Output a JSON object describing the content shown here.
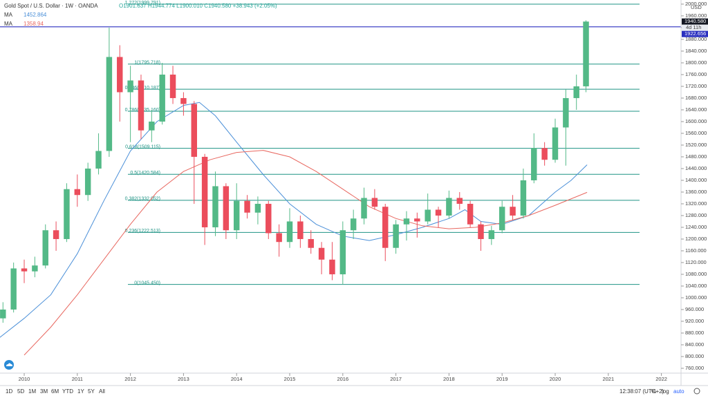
{
  "chart_data": {
    "type": "candlestick",
    "title": "Gold Spot / U.S. Dollar · 1W · OANDA",
    "ohlc_text": "O1901.637 H1944.774 L1900.010 C1940.580 +38.943 (+2.05%)",
    "y_unit": "USD",
    "up_color": "#53b987",
    "down_color": "#eb4d5c",
    "x": [
      2009.6,
      2009.8,
      2010.0,
      2010.2,
      2010.4,
      2010.6,
      2010.8,
      2011.0,
      2011.2,
      2011.4,
      2011.6,
      2011.8,
      2012.0,
      2012.2,
      2012.4,
      2012.6,
      2012.8,
      2013.0,
      2013.2,
      2013.4,
      2013.6,
      2013.8,
      2014.0,
      2014.2,
      2014.4,
      2014.6,
      2014.8,
      2015.0,
      2015.2,
      2015.4,
      2015.6,
      2015.8,
      2016.0,
      2016.2,
      2016.4,
      2016.6,
      2016.8,
      2017.0,
      2017.2,
      2017.4,
      2017.6,
      2017.8,
      2018.0,
      2018.2,
      2018.4,
      2018.6,
      2018.8,
      2019.0,
      2019.2,
      2019.4,
      2019.6,
      2019.8,
      2020.0,
      2020.2,
      2020.4,
      2020.58
    ],
    "open": [
      930,
      960,
      1100,
      1090,
      1110,
      1230,
      1200,
      1370,
      1350,
      1440,
      1500,
      1820,
      1700,
      1740,
      1570,
      1600,
      1760,
      1680,
      1660,
      1480,
      1240,
      1380,
      1230,
      1330,
      1290,
      1320,
      1220,
      1190,
      1260,
      1200,
      1170,
      1130,
      1080,
      1230,
      1270,
      1340,
      1310,
      1170,
      1250,
      1270,
      1260,
      1300,
      1280,
      1340,
      1320,
      1250,
      1200,
      1230,
      1310,
      1280,
      1400,
      1510,
      1470,
      1580,
      1680,
      1720
    ],
    "high": [
      985,
      1120,
      1130,
      1140,
      1250,
      1260,
      1390,
      1420,
      1460,
      1560,
      1920,
      1860,
      1790,
      1760,
      1640,
      1800,
      1790,
      1700,
      1670,
      1490,
      1430,
      1390,
      1390,
      1350,
      1345,
      1330,
      1250,
      1305,
      1280,
      1230,
      1190,
      1190,
      1260,
      1300,
      1375,
      1370,
      1320,
      1265,
      1295,
      1290,
      1355,
      1310,
      1365,
      1360,
      1330,
      1260,
      1245,
      1330,
      1350,
      1440,
      1560,
      1530,
      1610,
      1710,
      1760,
      1944.774
    ],
    "low": [
      915,
      950,
      1050,
      1070,
      1100,
      1160,
      1190,
      1310,
      1330,
      1420,
      1480,
      1600,
      1530,
      1540,
      1530,
      1590,
      1660,
      1620,
      1320,
      1180,
      1210,
      1200,
      1200,
      1270,
      1250,
      1200,
      1140,
      1170,
      1170,
      1150,
      1080,
      1060,
      1045,
      1200,
      1250,
      1300,
      1125,
      1150,
      1195,
      1205,
      1250,
      1240,
      1270,
      1300,
      1240,
      1160,
      1180,
      1220,
      1265,
      1270,
      1390,
      1450,
      1460,
      1450,
      1640,
      1700
    ],
    "close": [
      960,
      1100,
      1090,
      1110,
      1230,
      1200,
      1370,
      1350,
      1440,
      1500,
      1820,
      1700,
      1740,
      1570,
      1600,
      1760,
      1680,
      1660,
      1480,
      1240,
      1380,
      1230,
      1330,
      1290,
      1320,
      1220,
      1190,
      1260,
      1200,
      1170,
      1130,
      1080,
      1230,
      1270,
      1340,
      1310,
      1170,
      1250,
      1270,
      1260,
      1300,
      1280,
      1340,
      1320,
      1250,
      1200,
      1230,
      1310,
      1280,
      1400,
      1510,
      1470,
      1580,
      1680,
      1720,
      1940.58
    ],
    "ma": [
      {
        "name": "MA",
        "color": "#4a8fd8",
        "x": [
          2009.54,
          2010.0,
          2010.5,
          2011.0,
          2011.5,
          2012.0,
          2012.5,
          2013.0,
          2013.3,
          2013.6,
          2014.0,
          2014.5,
          2015.0,
          2015.5,
          2016.0,
          2016.5,
          2017.0,
          2017.5,
          2018.0,
          2018.3,
          2018.6,
          2019.0,
          2019.5,
          2020.0,
          2020.3,
          2020.6
        ],
        "values": [
          865,
          930,
          1010,
          1150,
          1330,
          1500,
          1600,
          1655,
          1665,
          1620,
          1530,
          1420,
          1320,
          1250,
          1210,
          1195,
          1215,
          1240,
          1270,
          1300,
          1260,
          1250,
          1280,
          1360,
          1400,
          1452.864
        ]
      },
      {
        "name": "MA",
        "color": "#e8675f",
        "x": [
          2010.0,
          2010.5,
          2011.0,
          2011.5,
          2012.0,
          2012.5,
          2013.0,
          2013.5,
          2014.0,
          2014.5,
          2015.0,
          2015.5,
          2016.0,
          2016.5,
          2017.0,
          2017.5,
          2018.0,
          2018.5,
          2019.0,
          2019.5,
          2020.0,
          2020.6
        ],
        "values": [
          805,
          900,
          1010,
          1130,
          1250,
          1360,
          1430,
          1470,
          1495,
          1502,
          1480,
          1430,
          1370,
          1310,
          1270,
          1245,
          1235,
          1240,
          1255,
          1280,
          1315,
          1358.94
        ]
      }
    ],
    "fib": {
      "color": "#1e9384",
      "levels": [
        {
          "value": 1999.791,
          "label": "1.272(1999.791)"
        },
        {
          "value": 1795.718,
          "label": "1(1795.718)"
        },
        {
          "value": 1710.187,
          "label": "0.886(1710.187)"
        },
        {
          "value": 1635.16,
          "label": "0.786(1635.160)"
        },
        {
          "value": 1509.115,
          "label": "0.618(1509.115)"
        },
        {
          "value": 1420.584,
          "label": "0.5(1420.584)"
        },
        {
          "value": 1332.052,
          "label": "0.382(1332.052)"
        },
        {
          "value": 1222.513,
          "label": "0.236(1222.513)"
        },
        {
          "value": 1045.45,
          "label": "0(1045.450)"
        }
      ]
    },
    "last_price": {
      "value": 1940.58,
      "label": "1940.580"
    },
    "countdown": "4d 11h",
    "hline": {
      "value": 1922.656,
      "label": "1922.656",
      "color": "#2a2fbf"
    },
    "xlim": [
      2009.544,
      2022.37
    ],
    "xticks": [
      2010,
      2011,
      2012,
      2013,
      2014,
      2015,
      2016,
      2017,
      2018,
      2019,
      2020,
      2021,
      2022
    ],
    "ylim": [
      743.5,
      2014
    ],
    "yticks": [
      {
        "value": 760,
        "label": "760.000"
      },
      {
        "value": 800,
        "label": "800.000"
      },
      {
        "value": 840,
        "label": "840.000"
      },
      {
        "value": 880,
        "label": "880.000"
      },
      {
        "value": 920,
        "label": "920.000"
      },
      {
        "value": 960,
        "label": "960.000"
      },
      {
        "value": 1000,
        "label": "1000.000"
      },
      {
        "value": 1040,
        "label": "1040.000"
      },
      {
        "value": 1080,
        "label": "1080.000"
      },
      {
        "value": 1120,
        "label": "1120.000"
      },
      {
        "value": 1160,
        "label": "1160.000"
      },
      {
        "value": 1200,
        "label": "1200.000"
      },
      {
        "value": 1240,
        "label": "1240.000"
      },
      {
        "value": 1280,
        "label": "1280.000"
      },
      {
        "value": 1320,
        "label": "1320.000"
      },
      {
        "value": 1360,
        "label": "1360.000"
      },
      {
        "value": 1400,
        "label": "1400.000"
      },
      {
        "value": 1440,
        "label": "1440.000"
      },
      {
        "value": 1480,
        "label": "1480.000"
      },
      {
        "value": 1520,
        "label": "1520.000"
      },
      {
        "value": 1560,
        "label": "1560.000"
      },
      {
        "value": 1600,
        "label": "1600.000"
      },
      {
        "value": 1640,
        "label": "1640.000"
      },
      {
        "value": 1680,
        "label": "1680.000"
      },
      {
        "value": 1720,
        "label": "1720.000"
      },
      {
        "value": 1760,
        "label": "1760.000"
      },
      {
        "value": 1800,
        "label": "1800.000"
      },
      {
        "value": 1840,
        "label": "1840.000"
      },
      {
        "value": 1880,
        "label": "1880.000"
      },
      {
        "value": 1920,
        "label": "1920.000"
      },
      {
        "value": 1960,
        "label": "1960.000"
      },
      {
        "value": 2000,
        "label": "2000.000"
      }
    ]
  },
  "toolbar": {
    "ranges": [
      "1D",
      "5D",
      "1M",
      "3M",
      "6M",
      "YTD",
      "1Y",
      "5Y",
      "All"
    ],
    "clock": "12:38:07 (UTC+2)",
    "percent": "%",
    "log": "log",
    "auto": "auto"
  }
}
